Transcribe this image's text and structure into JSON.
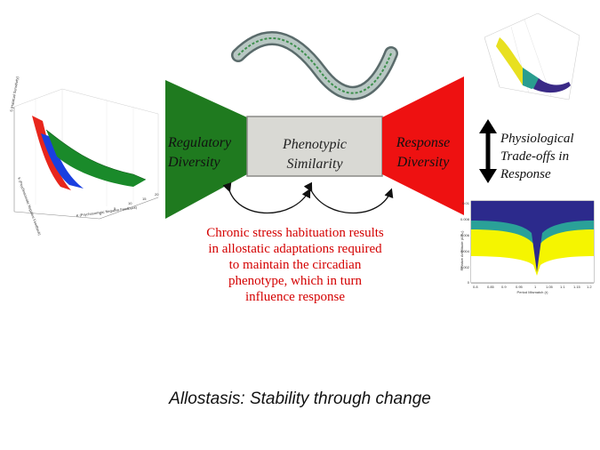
{
  "left_panel": {
    "line1": "Regulatory",
    "line2": "Diversity"
  },
  "center_panel": {
    "line1": "Phenotypic",
    "line2": "Similarity"
  },
  "right_panel": {
    "line1": "Response",
    "line2": "Diversity"
  },
  "tradeoff_label": {
    "line1": "Physiological",
    "line2": "Trade-offs in",
    "line3": "Response"
  },
  "note": "Chronic stress habituation results in allostatic adaptations required to maintain the circadian phenotype, which in turn influence response",
  "caption": "Allostasis: Stability through change",
  "left_plot": {
    "zlabel": "S (Habitual Sensitivity)",
    "ylabel": "K (Psychosomatic Negative Feedback)",
    "xlabel": "K (Psychosomatic Negative Feedback)",
    "x_ticks": [
      "0",
      "5",
      "10",
      "15",
      "20"
    ]
  },
  "bottom_right_plot": {
    "ylabel": "Relative Amplitude (A/A₀)",
    "xlabel": "Period Mismatch (r)",
    "y_ticks": [
      "0.01",
      "0.008",
      "0.006",
      "0.004",
      "0.002",
      "0"
    ],
    "x_ticks": [
      "0.8",
      "0.85",
      "0.9",
      "0.95",
      "1",
      "1.05",
      "1.1",
      "1.15",
      "1.2"
    ]
  },
  "colors": {
    "green": "#1f7a1f",
    "red": "#ee1111",
    "gray_box": "#d9d9d4",
    "navy": "#2c2a8c",
    "teal": "#2aa198",
    "yellow": "#f2f200",
    "note_red": "#d40000"
  },
  "icons": [
    "double-arrow-icon",
    "curved-arrow-icon",
    "dna-strand-icon"
  ]
}
